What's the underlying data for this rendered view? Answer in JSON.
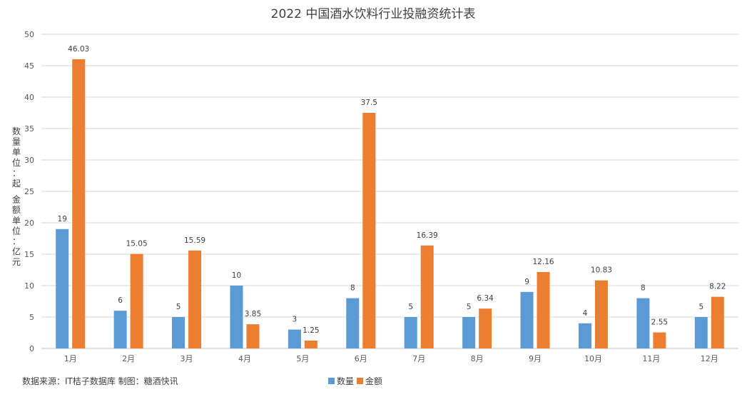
{
  "chart_data": {
    "type": "bar",
    "title": "2022 中国酒水饮料行业投融资统计表",
    "ylabel": "数量单位：起 金额单位：亿元",
    "xlabel": "",
    "categories": [
      "1月",
      "2月",
      "3月",
      "4月",
      "5月",
      "6月",
      "7月",
      "8月",
      "9月",
      "10月",
      "11月",
      "12月"
    ],
    "series": [
      {
        "name": "数量",
        "color": "#5B9BD5",
        "values": [
          19,
          6,
          5,
          10,
          3,
          8,
          5,
          5,
          9,
          4,
          8,
          5
        ]
      },
      {
        "name": "金额",
        "color": "#ED7D31",
        "values": [
          46.03,
          15.05,
          15.59,
          3.85,
          1.25,
          37.5,
          16.39,
          6.34,
          12.16,
          10.83,
          2.55,
          8.22
        ]
      }
    ],
    "ylim": [
      0,
      50
    ],
    "yticks": [
      0,
      5,
      10,
      15,
      20,
      25,
      30,
      35,
      40,
      45,
      50
    ],
    "grid": true,
    "legend_position": "bottom"
  },
  "footer": {
    "source": "数据来源：IT桔子数据库 制图：糖酒快讯"
  }
}
